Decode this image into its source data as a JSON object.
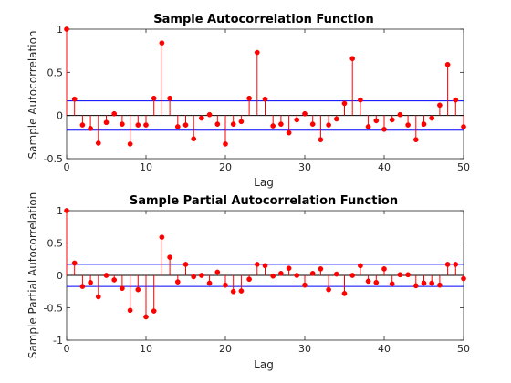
{
  "chart_data": [
    {
      "type": "stem",
      "title": "Sample Autocorrelation Function",
      "xlabel": "Lag",
      "ylabel": "Sample Autocorrelation",
      "xlim": [
        0,
        50
      ],
      "ylim": [
        -0.5,
        1
      ],
      "xticks": [
        "0",
        "10",
        "20",
        "30",
        "40",
        "50"
      ],
      "yticks": [
        "-0.5",
        "0",
        "0.5",
        "1"
      ],
      "bounds": [
        0.17,
        -0.17
      ],
      "x": [
        0,
        1,
        2,
        3,
        4,
        5,
        6,
        7,
        8,
        9,
        10,
        11,
        12,
        13,
        14,
        15,
        16,
        17,
        18,
        19,
        20,
        21,
        22,
        23,
        24,
        25,
        26,
        27,
        28,
        29,
        30,
        31,
        32,
        33,
        34,
        35,
        36,
        37,
        38,
        39,
        40,
        41,
        42,
        43,
        44,
        45,
        46,
        47,
        48,
        49,
        50
      ],
      "values": [
        1.0,
        0.19,
        -0.11,
        -0.15,
        -0.32,
        -0.08,
        0.02,
        -0.1,
        -0.33,
        -0.11,
        -0.11,
        0.2,
        0.84,
        0.2,
        -0.13,
        -0.11,
        -0.27,
        -0.03,
        0.01,
        -0.1,
        -0.33,
        -0.1,
        -0.07,
        0.2,
        0.73,
        0.19,
        -0.12,
        -0.1,
        -0.2,
        -0.05,
        0.02,
        -0.1,
        -0.28,
        -0.11,
        -0.04,
        0.14,
        0.66,
        0.18,
        -0.13,
        -0.06,
        -0.16,
        -0.05,
        0.01,
        -0.11,
        -0.28,
        -0.1,
        -0.03,
        0.12,
        0.59,
        0.18,
        -0.13
      ],
      "colors": {
        "stem": "#ff0000",
        "marker": "#ff0000",
        "bounds": "#0000ff",
        "baseline": "#000000"
      }
    },
    {
      "type": "stem",
      "title": "Sample Partial Autocorrelation Function",
      "xlabel": "Lag",
      "ylabel": "Sample Partial Autocorrelation",
      "xlim": [
        0,
        50
      ],
      "ylim": [
        -1,
        1
      ],
      "xticks": [
        "0",
        "10",
        "20",
        "30",
        "40",
        "50"
      ],
      "yticks": [
        "-1",
        "-0.5",
        "0",
        "0.5",
        "1"
      ],
      "bounds": [
        0.17,
        -0.17
      ],
      "x": [
        0,
        1,
        2,
        3,
        4,
        5,
        6,
        7,
        8,
        9,
        10,
        11,
        12,
        13,
        14,
        15,
        16,
        17,
        18,
        19,
        20,
        21,
        22,
        23,
        24,
        25,
        26,
        27,
        28,
        29,
        30,
        31,
        32,
        33,
        34,
        35,
        36,
        37,
        38,
        39,
        40,
        41,
        42,
        43,
        44,
        45,
        46,
        47,
        48,
        49,
        50
      ],
      "values": [
        1.0,
        0.19,
        -0.17,
        -0.11,
        -0.33,
        0.0,
        -0.07,
        -0.2,
        -0.54,
        -0.22,
        -0.64,
        -0.55,
        0.59,
        0.28,
        -0.1,
        0.17,
        -0.02,
        0.0,
        -0.12,
        0.05,
        -0.15,
        -0.25,
        -0.24,
        -0.06,
        0.17,
        0.15,
        -0.01,
        0.03,
        0.11,
        0.0,
        -0.15,
        0.03,
        0.1,
        -0.22,
        0.02,
        -0.28,
        0.0,
        0.15,
        -0.09,
        -0.11,
        0.1,
        -0.13,
        0.01,
        0.01,
        -0.16,
        -0.12,
        -0.12,
        -0.15,
        0.17,
        0.17,
        -0.05
      ],
      "colors": {
        "stem": "#ff0000",
        "marker": "#ff0000",
        "bounds": "#0000ff",
        "baseline": "#000000"
      }
    }
  ]
}
